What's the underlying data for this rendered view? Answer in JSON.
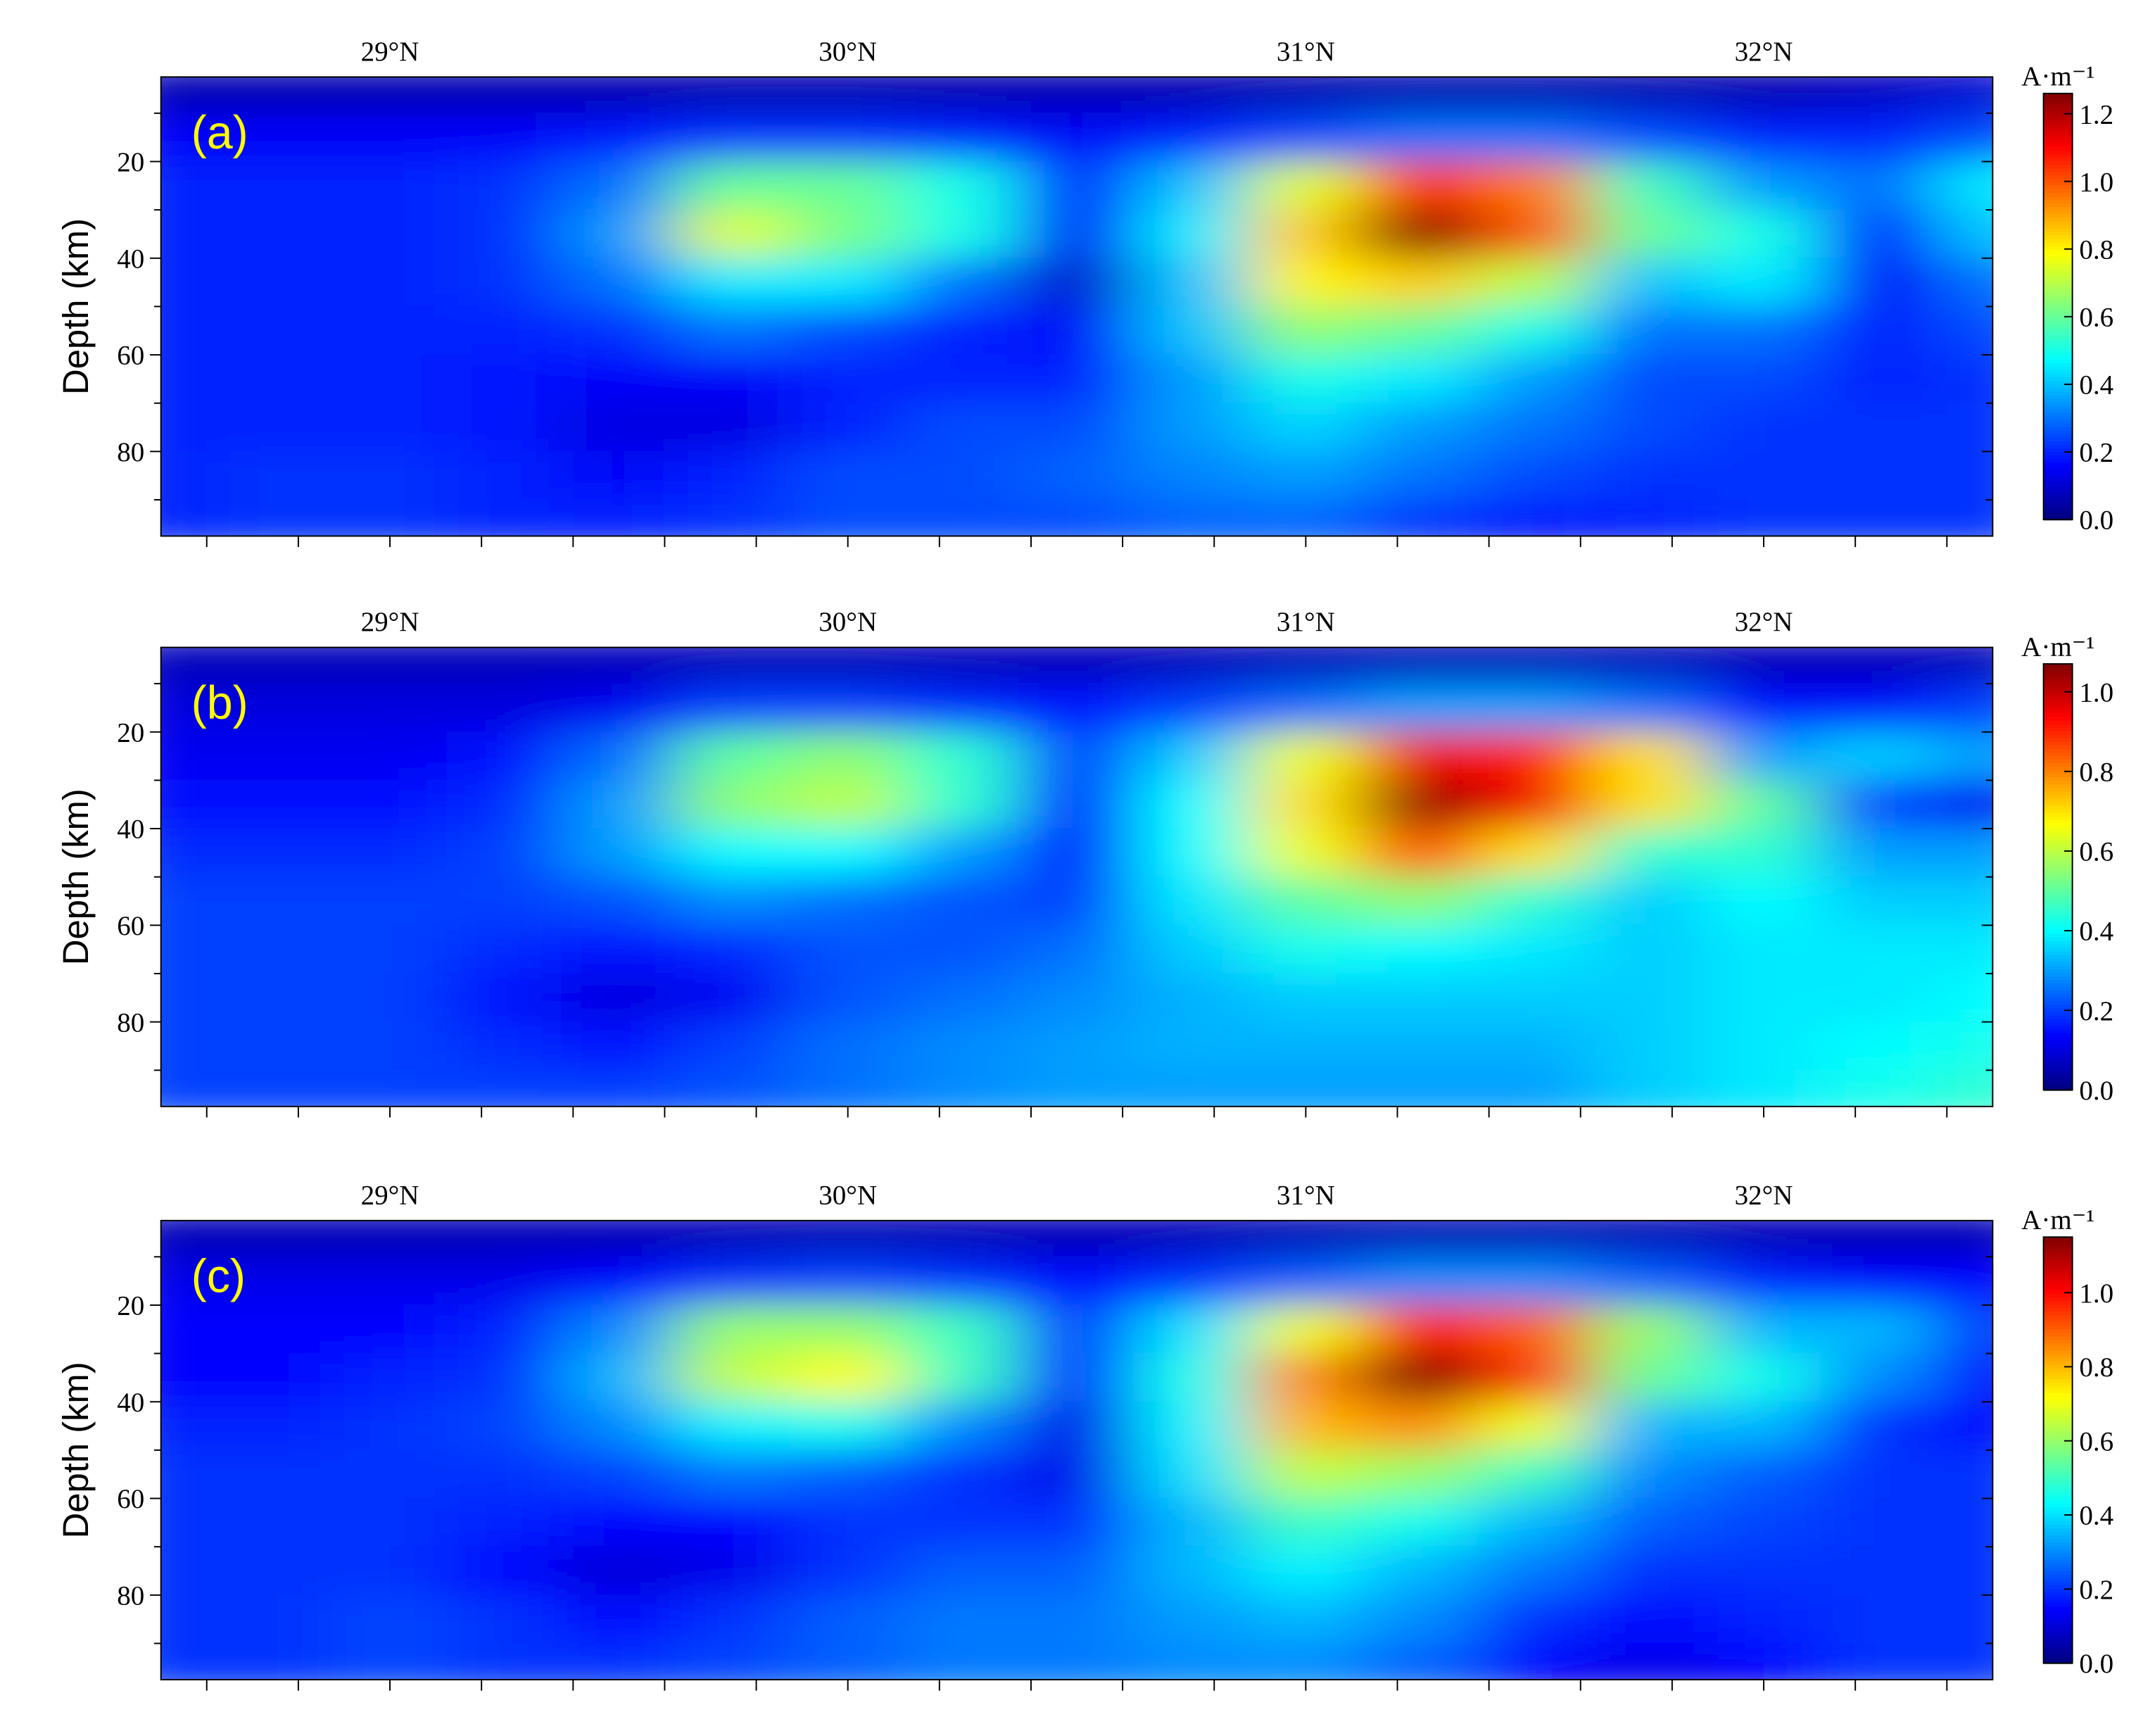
{
  "chart_data": [
    {
      "type": "heatmap",
      "panel_label": "(a)",
      "ylabel": "Depth (km)",
      "colormap": "jet",
      "xlim": [
        28.5,
        32.5
      ],
      "ylim": [
        2.5,
        97.5
      ],
      "y_reversed": true,
      "xticks": [
        {
          "value": 29,
          "label": "29°N"
        },
        {
          "value": 30,
          "label": "30°N"
        },
        {
          "value": 31,
          "label": "31°N"
        },
        {
          "value": 32,
          "label": "32°N"
        }
      ],
      "xminorticks": [
        28.6,
        28.8,
        29.2,
        29.4,
        29.6,
        29.8,
        30.2,
        30.4,
        30.6,
        30.8,
        31.2,
        31.4,
        31.6,
        31.8,
        32.2,
        32.4
      ],
      "yticks": [
        20,
        40,
        60,
        80
      ],
      "yminorticks": [
        10,
        30,
        50,
        70,
        90
      ],
      "colorbar": {
        "label": "A·m⁻¹",
        "clim": [
          0,
          1.26
        ],
        "ticks": [
          {
            "value": 0,
            "label": "0.0"
          },
          0.2,
          0.4,
          0.6,
          0.8,
          {
            "value": 1,
            "label": "1.0"
          },
          1.2
        ]
      },
      "x": [
        28.5,
        28.75,
        29.0,
        29.25,
        29.5,
        29.75,
        30.0,
        30.25,
        30.5,
        30.75,
        31.0,
        31.25,
        31.5,
        31.75,
        32.0,
        32.25,
        32.5
      ],
      "y": [
        5,
        15,
        25,
        35,
        45,
        55,
        65,
        75,
        85,
        95
      ],
      "z": [
        [
          0.06,
          0.06,
          0.06,
          0.06,
          0.06,
          0.06,
          0.06,
          0.06,
          0.06,
          0.06,
          0.06,
          0.06,
          0.06,
          0.06,
          0.06,
          0.08,
          0.1
        ],
        [
          0.15,
          0.15,
          0.15,
          0.15,
          0.18,
          0.22,
          0.22,
          0.2,
          0.15,
          0.2,
          0.25,
          0.3,
          0.3,
          0.25,
          0.2,
          0.2,
          0.25
        ],
        [
          0.2,
          0.2,
          0.2,
          0.22,
          0.3,
          0.6,
          0.6,
          0.5,
          0.2,
          0.4,
          0.75,
          1.05,
          0.95,
          0.55,
          0.35,
          0.3,
          0.45
        ],
        [
          0.2,
          0.2,
          0.2,
          0.22,
          0.35,
          0.75,
          0.62,
          0.5,
          0.15,
          0.45,
          0.85,
          1.25,
          1.0,
          0.6,
          0.5,
          0.2,
          0.4
        ],
        [
          0.2,
          0.2,
          0.2,
          0.22,
          0.3,
          0.45,
          0.45,
          0.3,
          0.1,
          0.4,
          0.8,
          0.85,
          0.7,
          0.4,
          0.45,
          0.15,
          0.3
        ],
        [
          0.2,
          0.2,
          0.2,
          0.2,
          0.22,
          0.3,
          0.25,
          0.2,
          0.15,
          0.4,
          0.65,
          0.6,
          0.5,
          0.3,
          0.3,
          0.2,
          0.25
        ],
        [
          0.2,
          0.2,
          0.2,
          0.18,
          0.15,
          0.15,
          0.2,
          0.2,
          0.2,
          0.35,
          0.5,
          0.45,
          0.35,
          0.25,
          0.25,
          0.2,
          0.22
        ],
        [
          0.2,
          0.2,
          0.2,
          0.18,
          0.12,
          0.12,
          0.2,
          0.25,
          0.25,
          0.35,
          0.42,
          0.35,
          0.3,
          0.25,
          0.22,
          0.22,
          0.22
        ],
        [
          0.2,
          0.22,
          0.22,
          0.2,
          0.15,
          0.2,
          0.25,
          0.25,
          0.28,
          0.32,
          0.35,
          0.3,
          0.25,
          0.22,
          0.22,
          0.22,
          0.22
        ],
        [
          0.2,
          0.22,
          0.22,
          0.2,
          0.2,
          0.22,
          0.25,
          0.25,
          0.25,
          0.28,
          0.28,
          0.22,
          0.18,
          0.2,
          0.22,
          0.22,
          0.22
        ]
      ]
    },
    {
      "type": "heatmap",
      "panel_label": "(b)",
      "ylabel": "Depth (km)",
      "colormap": "jet",
      "xlim": [
        28.5,
        32.5
      ],
      "ylim": [
        2.5,
        97.5
      ],
      "y_reversed": true,
      "xticks": [
        {
          "value": 29,
          "label": "29°N"
        },
        {
          "value": 30,
          "label": "30°N"
        },
        {
          "value": 31,
          "label": "31°N"
        },
        {
          "value": 32,
          "label": "32°N"
        }
      ],
      "xminorticks": [
        28.6,
        28.8,
        29.2,
        29.4,
        29.6,
        29.8,
        30.2,
        30.4,
        30.6,
        30.8,
        31.2,
        31.4,
        31.6,
        31.8,
        32.2,
        32.4
      ],
      "yticks": [
        20,
        40,
        60,
        80
      ],
      "yminorticks": [
        10,
        30,
        50,
        70,
        90
      ],
      "colorbar": {
        "label": "A·m⁻¹",
        "clim": [
          0,
          1.07
        ],
        "ticks": [
          {
            "value": 0,
            "label": "0.0"
          },
          0.2,
          0.4,
          0.6,
          0.8,
          {
            "value": 1,
            "label": "1.0"
          }
        ]
      },
      "x": [
        28.5,
        28.75,
        29.0,
        29.25,
        29.5,
        29.75,
        30.0,
        30.25,
        30.5,
        30.75,
        31.0,
        31.25,
        31.5,
        31.75,
        32.0,
        32.25,
        32.5
      ],
      "y": [
        5,
        15,
        25,
        35,
        45,
        55,
        65,
        75,
        85,
        95
      ],
      "z": [
        [
          0.06,
          0.06,
          0.06,
          0.06,
          0.06,
          0.06,
          0.06,
          0.06,
          0.06,
          0.06,
          0.06,
          0.06,
          0.06,
          0.06,
          0.06,
          0.06,
          0.06
        ],
        [
          0.1,
          0.1,
          0.1,
          0.1,
          0.12,
          0.2,
          0.2,
          0.18,
          0.15,
          0.2,
          0.25,
          0.3,
          0.3,
          0.25,
          0.15,
          0.15,
          0.2
        ],
        [
          0.12,
          0.12,
          0.12,
          0.15,
          0.25,
          0.5,
          0.55,
          0.45,
          0.2,
          0.35,
          0.65,
          0.95,
          0.9,
          0.7,
          0.3,
          0.35,
          0.3
        ],
        [
          0.15,
          0.15,
          0.15,
          0.18,
          0.3,
          0.55,
          0.6,
          0.45,
          0.15,
          0.4,
          0.7,
          1.05,
          0.95,
          0.7,
          0.5,
          0.2,
          0.12
        ],
        [
          0.18,
          0.18,
          0.18,
          0.2,
          0.3,
          0.4,
          0.4,
          0.3,
          0.15,
          0.4,
          0.65,
          0.85,
          0.7,
          0.45,
          0.45,
          0.3,
          0.3
        ],
        [
          0.2,
          0.2,
          0.2,
          0.2,
          0.22,
          0.28,
          0.25,
          0.22,
          0.2,
          0.38,
          0.5,
          0.55,
          0.45,
          0.35,
          0.4,
          0.35,
          0.35
        ],
        [
          0.2,
          0.2,
          0.2,
          0.18,
          0.15,
          0.18,
          0.22,
          0.22,
          0.25,
          0.35,
          0.42,
          0.4,
          0.38,
          0.35,
          0.38,
          0.38,
          0.38
        ],
        [
          0.2,
          0.2,
          0.2,
          0.15,
          0.1,
          0.12,
          0.22,
          0.25,
          0.28,
          0.32,
          0.35,
          0.35,
          0.35,
          0.35,
          0.38,
          0.38,
          0.4
        ],
        [
          0.2,
          0.2,
          0.2,
          0.18,
          0.15,
          0.2,
          0.25,
          0.28,
          0.3,
          0.32,
          0.32,
          0.32,
          0.32,
          0.35,
          0.38,
          0.4,
          0.42
        ],
        [
          0.2,
          0.2,
          0.2,
          0.2,
          0.2,
          0.22,
          0.25,
          0.28,
          0.3,
          0.3,
          0.3,
          0.3,
          0.3,
          0.35,
          0.38,
          0.42,
          0.45
        ]
      ]
    },
    {
      "type": "heatmap",
      "panel_label": "(c)",
      "ylabel": "Depth (km)",
      "colormap": "jet",
      "xlim": [
        28.5,
        32.5
      ],
      "ylim": [
        2.5,
        97.5
      ],
      "y_reversed": true,
      "xticks": [
        {
          "value": 29,
          "label": "29°N"
        },
        {
          "value": 30,
          "label": "30°N"
        },
        {
          "value": 31,
          "label": "31°N"
        },
        {
          "value": 32,
          "label": "32°N"
        }
      ],
      "xminorticks": [
        28.6,
        28.8,
        29.2,
        29.4,
        29.6,
        29.8,
        30.2,
        30.4,
        30.6,
        30.8,
        31.2,
        31.4,
        31.6,
        31.8,
        32.2,
        32.4
      ],
      "yticks": [
        20,
        40,
        60,
        80
      ],
      "yminorticks": [
        10,
        30,
        50,
        70,
        90
      ],
      "colorbar": {
        "label": "A·m⁻¹",
        "clim": [
          0,
          1.15
        ],
        "ticks": [
          {
            "value": 0,
            "label": "0.0"
          },
          0.2,
          0.4,
          0.6,
          0.8,
          {
            "value": 1,
            "label": "1.0"
          }
        ]
      },
      "x": [
        28.5,
        28.75,
        29.0,
        29.25,
        29.5,
        29.75,
        30.0,
        30.25,
        30.5,
        30.75,
        31.0,
        31.25,
        31.5,
        31.75,
        32.0,
        32.25,
        32.5
      ],
      "y": [
        5,
        15,
        25,
        35,
        45,
        55,
        65,
        75,
        85,
        95
      ],
      "z": [
        [
          0.06,
          0.06,
          0.06,
          0.06,
          0.06,
          0.06,
          0.06,
          0.06,
          0.06,
          0.06,
          0.06,
          0.06,
          0.06,
          0.06,
          0.06,
          0.06,
          0.06
        ],
        [
          0.12,
          0.12,
          0.12,
          0.12,
          0.15,
          0.2,
          0.22,
          0.2,
          0.15,
          0.2,
          0.25,
          0.3,
          0.3,
          0.25,
          0.18,
          0.15,
          0.15
        ],
        [
          0.15,
          0.15,
          0.15,
          0.18,
          0.3,
          0.6,
          0.6,
          0.5,
          0.2,
          0.4,
          0.7,
          1.0,
          0.9,
          0.6,
          0.35,
          0.35,
          0.2
        ],
        [
          0.15,
          0.15,
          0.18,
          0.2,
          0.35,
          0.65,
          0.72,
          0.5,
          0.18,
          0.45,
          0.85,
          1.15,
          0.95,
          0.55,
          0.45,
          0.3,
          0.15
        ],
        [
          0.18,
          0.18,
          0.2,
          0.22,
          0.3,
          0.42,
          0.45,
          0.3,
          0.12,
          0.42,
          0.8,
          0.85,
          0.7,
          0.35,
          0.35,
          0.2,
          0.15
        ],
        [
          0.2,
          0.2,
          0.2,
          0.2,
          0.22,
          0.28,
          0.25,
          0.2,
          0.12,
          0.4,
          0.65,
          0.6,
          0.5,
          0.3,
          0.25,
          0.2,
          0.2
        ],
        [
          0.2,
          0.2,
          0.2,
          0.18,
          0.15,
          0.15,
          0.2,
          0.2,
          0.2,
          0.35,
          0.5,
          0.45,
          0.35,
          0.25,
          0.22,
          0.2,
          0.2
        ],
        [
          0.2,
          0.2,
          0.2,
          0.15,
          0.1,
          0.12,
          0.2,
          0.25,
          0.25,
          0.35,
          0.42,
          0.35,
          0.28,
          0.2,
          0.2,
          0.2,
          0.2
        ],
        [
          0.2,
          0.2,
          0.22,
          0.2,
          0.15,
          0.2,
          0.25,
          0.28,
          0.28,
          0.32,
          0.35,
          0.3,
          0.2,
          0.15,
          0.18,
          0.2,
          0.2
        ],
        [
          0.2,
          0.2,
          0.22,
          0.2,
          0.2,
          0.22,
          0.25,
          0.28,
          0.28,
          0.3,
          0.3,
          0.25,
          0.15,
          0.12,
          0.15,
          0.2,
          0.2
        ]
      ]
    }
  ]
}
